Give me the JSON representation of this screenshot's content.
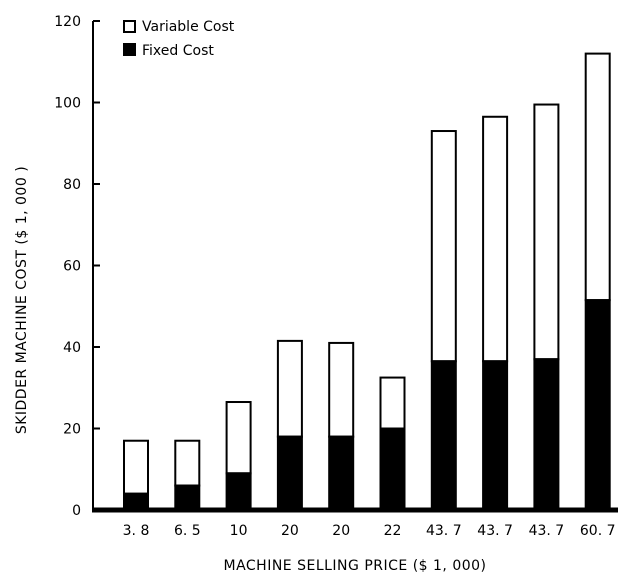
{
  "chart_data": {
    "type": "bar",
    "stacked": true,
    "categories": [
      "3. 8",
      "6. 5",
      "10",
      "20",
      "20",
      "22",
      "43. 7",
      "43. 7",
      "43. 7",
      "60. 7"
    ],
    "series": [
      {
        "name": "Fixed Cost",
        "values": [
          4,
          6,
          9,
          18,
          18,
          20,
          36.5,
          36.5,
          37,
          51.5
        ],
        "color": "#000000"
      },
      {
        "name": "Variable Cost",
        "values": [
          13,
          11,
          17.5,
          23.5,
          23,
          12.5,
          56.5,
          60,
          62.5,
          60.5
        ],
        "color": "#ffffff"
      }
    ],
    "yticks": [
      "0",
      "20",
      "40",
      "60",
      "80",
      "100",
      "120"
    ],
    "ylim": [
      0,
      120
    ],
    "xlabel": "MACHINE SELLING PRICE ($ 1, 000)",
    "ylabel": "SKIDDER MACHINE COST ($ 1, 000 )",
    "legend": [
      "Variable Cost",
      "Fixed Cost"
    ],
    "legend_position": "top-left",
    "grid": false
  }
}
